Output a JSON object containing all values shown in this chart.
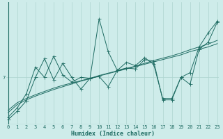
{
  "xlabel": "Humidex (Indice chaleur)",
  "bg_color": "#ceecea",
  "line_color": "#1e6b62",
  "grid_color": "#aed4d0",
  "x_min": 0,
  "x_max": 23,
  "y_label_val": 7,
  "ylim_min": 6.0,
  "ylim_max": 8.6,
  "series1_x": [
    0,
    1,
    2,
    3,
    4,
    5,
    6,
    7,
    8,
    9,
    10,
    11,
    12,
    13,
    14,
    15,
    16,
    17,
    18,
    19,
    20,
    21,
    22,
    23
  ],
  "series1_y": [
    6.25,
    6.42,
    6.52,
    6.6,
    6.67,
    6.74,
    6.8,
    6.86,
    6.92,
    6.97,
    7.03,
    7.08,
    7.13,
    7.18,
    7.23,
    7.28,
    7.33,
    7.38,
    7.43,
    7.48,
    7.55,
    7.6,
    7.65,
    7.72
  ],
  "series2_x": [
    0,
    1,
    2,
    3,
    4,
    5,
    6,
    7,
    8,
    9,
    10,
    11,
    12,
    13,
    14,
    15,
    16,
    17,
    18,
    19,
    20,
    21,
    22,
    23
  ],
  "series2_y": [
    6.3,
    6.46,
    6.55,
    6.63,
    6.7,
    6.77,
    6.83,
    6.88,
    6.93,
    6.98,
    7.04,
    7.09,
    7.14,
    7.19,
    7.24,
    7.3,
    7.36,
    7.41,
    7.46,
    7.52,
    7.59,
    7.65,
    7.71,
    7.79
  ],
  "series3_x": [
    0,
    1,
    2,
    3,
    4,
    5,
    6,
    7,
    8,
    9,
    10,
    11,
    12,
    13,
    14,
    15,
    16,
    17,
    18,
    19,
    20,
    21,
    22,
    23
  ],
  "series3_y": [
    6.15,
    6.35,
    6.65,
    7.22,
    7.0,
    7.45,
    7.05,
    6.9,
    7.0,
    6.98,
    8.25,
    7.55,
    7.15,
    7.32,
    7.25,
    7.42,
    7.28,
    6.55,
    6.55,
    7.0,
    7.1,
    7.65,
    7.95,
    8.2
  ],
  "series4_x": [
    0,
    1,
    2,
    3,
    4,
    5,
    6,
    7,
    8,
    9,
    10,
    11,
    12,
    13,
    14,
    15,
    16,
    17,
    18,
    19,
    20,
    21,
    22,
    23
  ],
  "series4_y": [
    6.1,
    6.28,
    6.5,
    7.0,
    7.4,
    6.95,
    7.3,
    7.0,
    6.75,
    6.98,
    7.02,
    6.8,
    7.15,
    7.2,
    7.18,
    7.38,
    7.35,
    6.52,
    6.52,
    7.0,
    6.85,
    7.6,
    7.75,
    8.18
  ],
  "tick_label_fontsize": 5.0,
  "axis_label_fontsize": 6.0,
  "marker_size": 2.0,
  "lw_smooth": 0.7,
  "lw_jagged": 0.7
}
